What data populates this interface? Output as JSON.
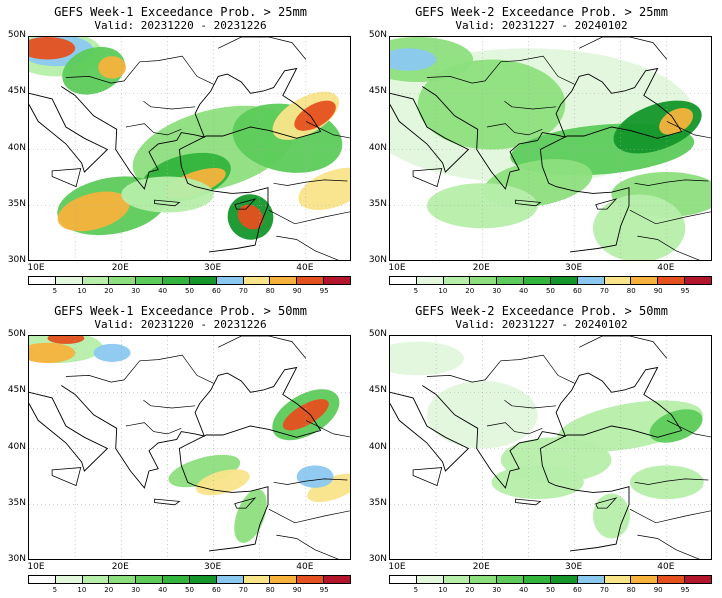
{
  "colorbar": {
    "labels": [
      "5",
      "10",
      "20",
      "30",
      "40",
      "50",
      "60",
      "70",
      "80",
      "90",
      "95"
    ],
    "colors": [
      "#ffffff",
      "#e2f7dc",
      "#b6eeaa",
      "#8ddf7d",
      "#5ccb5a",
      "#33b43c",
      "#14962a",
      "#8bc8f0",
      "#f9e48a",
      "#f6b23c",
      "#e5501f",
      "#b3162a"
    ]
  },
  "axes": {
    "lat_labels": [
      "50N",
      "45N",
      "40N",
      "35N",
      "30N"
    ],
    "lon_labels": [
      "10E",
      "20E",
      "30E",
      "40E"
    ]
  },
  "panels": [
    {
      "title": "GEFS Week-1 Exceedance Prob. > 25mm",
      "valid": "Valid: 20231220 - 20231226"
    },
    {
      "title": "GEFS Week-2 Exceedance Prob. > 25mm",
      "valid": "Valid: 20231227 - 20240102"
    },
    {
      "title": "GEFS Week-1 Exceedance Prob. > 50mm",
      "valid": "Valid: 20231220 - 20231226"
    },
    {
      "title": "GEFS Week-2 Exceedance Prob. > 50mm",
      "valid": "Valid: 20231227 - 20240102"
    }
  ]
}
